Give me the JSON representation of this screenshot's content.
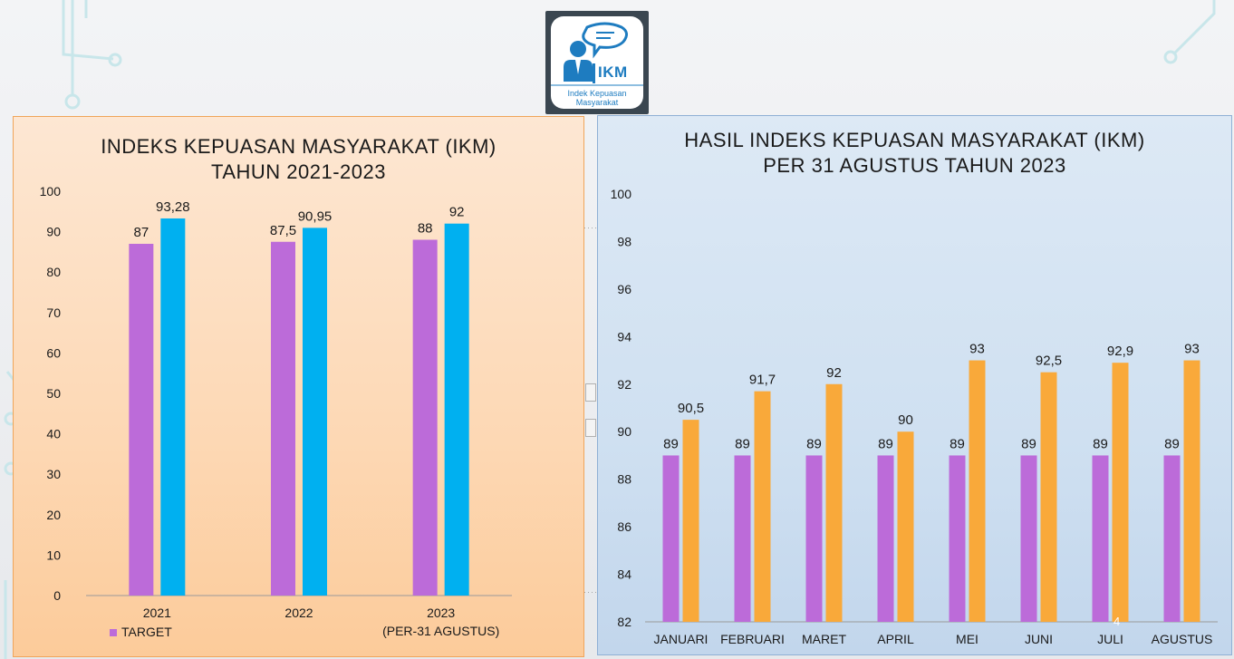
{
  "logo": {
    "text": "IKM",
    "sub_line1": "Indek Kepuasan",
    "sub_line2": "Masyarakat",
    "icon": "person-with-speech-bubble-icon"
  },
  "colors": {
    "target": "#bc6bd9",
    "actual_left": "#00b0f0",
    "actual_right": "#f9a93a",
    "left_panel": "#fdd8b4",
    "right_panel": "#cfe0f1"
  },
  "left_chart": {
    "title_line1": "INDEKS KEPUASAN MASYARAKAT (IKM)",
    "title_line2": "TAHUN 2021-2023",
    "legend_target": "TARGET",
    "chart_data": {
      "type": "bar",
      "categories": [
        "2021",
        "2022",
        "2023"
      ],
      "category_sublabels": [
        "",
        "",
        "(PER-31 AGUSTUS)"
      ],
      "series": [
        {
          "name": "TARGET",
          "values": [
            87,
            87.5,
            88
          ],
          "labels": [
            "87",
            "87,5",
            "88"
          ]
        },
        {
          "name": "",
          "values": [
            93.28,
            90.95,
            92
          ],
          "labels": [
            "93,28",
            "90,95",
            "92"
          ]
        }
      ],
      "yticks": [
        "0",
        "10",
        "20",
        "30",
        "40",
        "50",
        "60",
        "70",
        "80",
        "90",
        "100"
      ],
      "ylim": [
        0,
        100
      ],
      "grid": false,
      "legend_position": "bottom-left"
    }
  },
  "right_chart": {
    "title_line1": "HASIL INDEKS KEPUASAN MASYARAKAT (IKM)",
    "title_line2": "PER 31 AGUSTUS TAHUN 2023",
    "chart_data": {
      "type": "bar",
      "categories": [
        "JANUARI",
        "FEBRUARI",
        "MARET",
        "APRIL",
        "MEI",
        "JUNI",
        "JULI",
        "AGUSTUS"
      ],
      "series": [
        {
          "name": "",
          "values": [
            89,
            89,
            89,
            89,
            89,
            89,
            89,
            89
          ],
          "labels": [
            "89",
            "89",
            "89",
            "89",
            "89",
            "89",
            "89",
            "89"
          ]
        },
        {
          "name": "",
          "values": [
            90.5,
            91.7,
            92,
            90,
            93,
            92.5,
            92.9,
            93
          ],
          "labels": [
            "90,5",
            "91,7",
            "92",
            "90",
            "93",
            "92,5",
            "92,9",
            "93"
          ]
        }
      ],
      "yticks": [
        "82",
        "84",
        "86",
        "88",
        "90",
        "92",
        "94",
        "96",
        "98",
        "100"
      ],
      "ylim": [
        82,
        100
      ],
      "grid": false
    }
  },
  "stray_text": "4"
}
